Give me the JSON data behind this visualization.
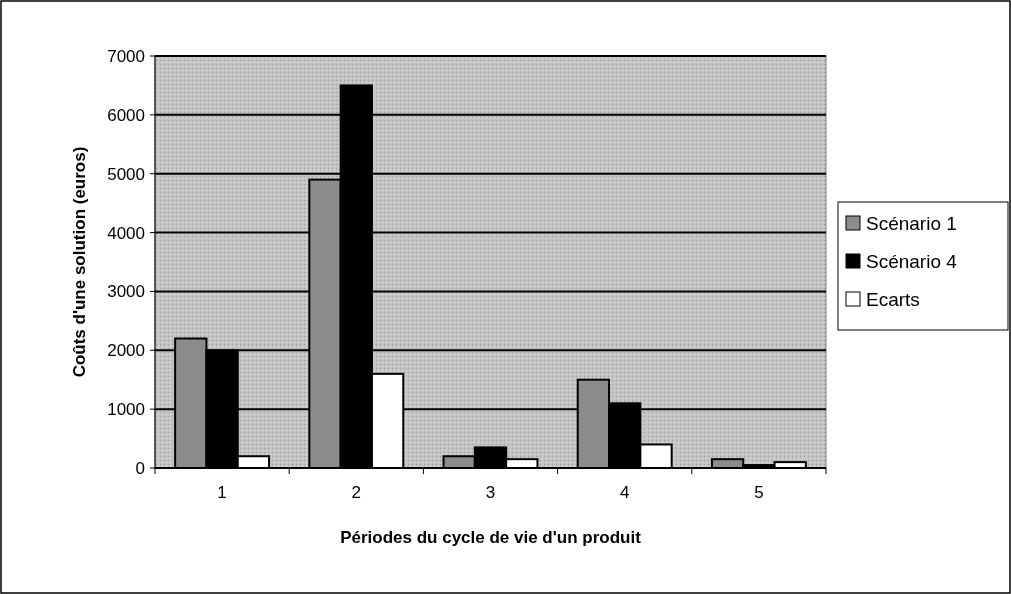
{
  "chart_data": {
    "type": "bar",
    "xlabel": "Périodes du cycle de vie d'un produit",
    "ylabel": "Coûts d'une solution (euros)",
    "categories": [
      "1",
      "2",
      "3",
      "4",
      "5"
    ],
    "series": [
      {
        "name": "Scénario 1",
        "color": "#8c8c8c",
        "values": [
          2200,
          4900,
          200,
          1500,
          150
        ]
      },
      {
        "name": "Scénario 4",
        "color": "#000000",
        "values": [
          2000,
          6500,
          350,
          1100,
          50
        ]
      },
      {
        "name": "Ecarts",
        "color": "#ffffff",
        "values": [
          200,
          1600,
          150,
          400,
          100
        ]
      }
    ],
    "ylim": [
      0,
      7000
    ],
    "yticks": [
      0,
      1000,
      2000,
      3000,
      4000,
      5000,
      6000,
      7000
    ],
    "grid": "y",
    "legend": "right"
  }
}
